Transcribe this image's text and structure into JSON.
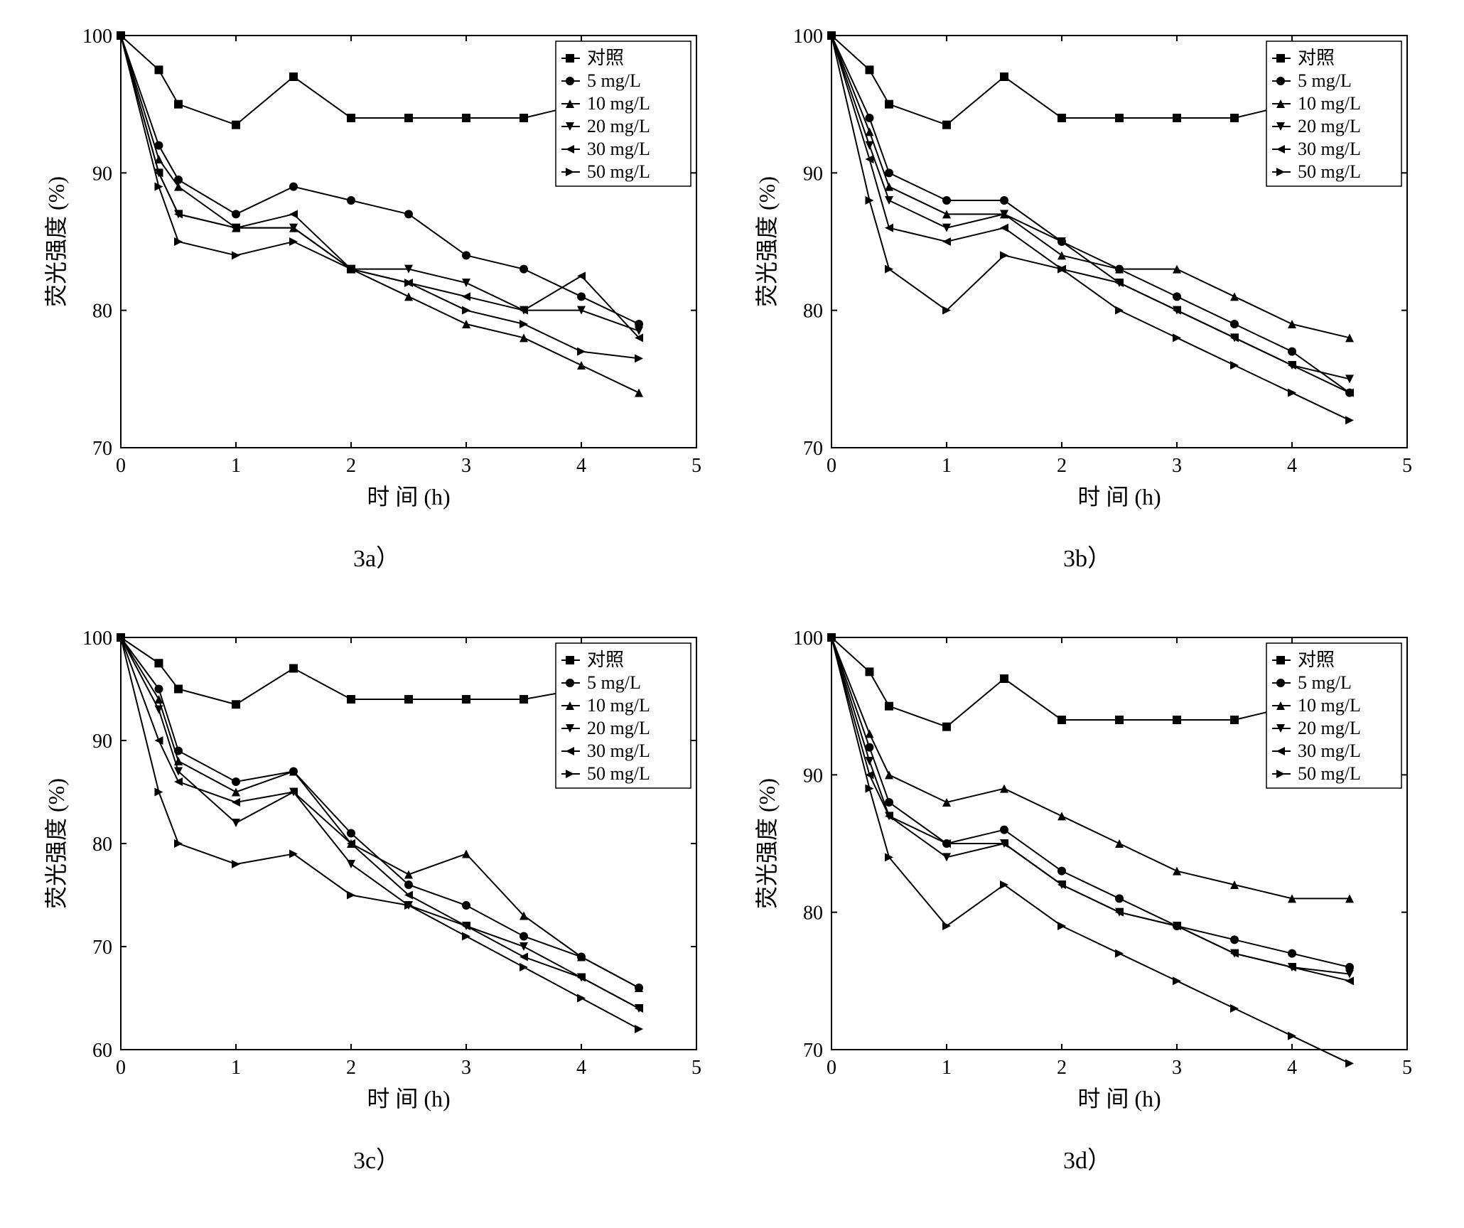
{
  "global": {
    "background_color": "#ffffff",
    "axis_color": "#000000",
    "text_color": "#000000",
    "line_color": "#000000",
    "marker_fill": "#000000",
    "font_family": "Times New Roman, SimSun, serif",
    "axis_label_fontsize": 32,
    "tick_fontsize": 28,
    "legend_fontsize": 26,
    "caption_fontsize": 34,
    "line_width": 2,
    "marker_size": 6,
    "legend_items": [
      {
        "label": "对照",
        "marker": "square"
      },
      {
        "label": "5 mg/L",
        "marker": "circle"
      },
      {
        "label": "10 mg/L",
        "marker": "triangle-up"
      },
      {
        "label": "20 mg/L",
        "marker": "triangle-down"
      },
      {
        "label": "30 mg/L",
        "marker": "triangle-left"
      },
      {
        "label": "50 mg/L",
        "marker": "triangle-right"
      }
    ],
    "xlabel": "时 间 (h)",
    "ylabel": "荧光强度 (%)",
    "xlim": [
      0,
      5
    ],
    "x_ticks": [
      0,
      1,
      2,
      3,
      4,
      5
    ],
    "x_values": [
      0,
      0.33,
      0.5,
      1,
      1.5,
      2,
      2.5,
      3,
      3.5,
      4,
      4.5
    ],
    "control_series_y": [
      100,
      97.5,
      95,
      93.5,
      97,
      94,
      94,
      94,
      94,
      95,
      98
    ]
  },
  "panels": [
    {
      "id": "a",
      "caption": "3a）",
      "ylim": [
        70,
        100
      ],
      "y_ticks": [
        70,
        80,
        90,
        100
      ],
      "series": [
        {
          "key": "control",
          "marker": "square",
          "y": [
            100,
            97.5,
            95,
            93.5,
            97,
            94,
            94,
            94,
            94,
            95,
            98
          ]
        },
        {
          "key": "5",
          "marker": "circle",
          "y": [
            100,
            92,
            89.5,
            87,
            89,
            88,
            87,
            84,
            83,
            81,
            79
          ]
        },
        {
          "key": "10",
          "marker": "triangle-up",
          "y": [
            100,
            91,
            89,
            86,
            86,
            83,
            81,
            79,
            78,
            76,
            74
          ]
        },
        {
          "key": "20",
          "marker": "triangle-down",
          "y": [
            100,
            90,
            87,
            86,
            86,
            83,
            83,
            82,
            80,
            80,
            78.5
          ]
        },
        {
          "key": "30",
          "marker": "triangle-left",
          "y": [
            100,
            90,
            87,
            86,
            87,
            83,
            82,
            81,
            80,
            82.5,
            78
          ]
        },
        {
          "key": "50",
          "marker": "triangle-right",
          "y": [
            100,
            89,
            85,
            84,
            85,
            83,
            82,
            80,
            79,
            77,
            76.5
          ]
        }
      ]
    },
    {
      "id": "b",
      "caption": "3b）",
      "ylim": [
        70,
        100
      ],
      "y_ticks": [
        70,
        80,
        90,
        100
      ],
      "series": [
        {
          "key": "control",
          "marker": "square",
          "y": [
            100,
            97.5,
            95,
            93.5,
            97,
            94,
            94,
            94,
            94,
            95,
            98
          ]
        },
        {
          "key": "5",
          "marker": "circle",
          "y": [
            100,
            94,
            90,
            88,
            88,
            85,
            83,
            81,
            79,
            77,
            74
          ]
        },
        {
          "key": "10",
          "marker": "triangle-up",
          "y": [
            100,
            93,
            89,
            87,
            87,
            84,
            83,
            83,
            81,
            79,
            78
          ]
        },
        {
          "key": "20",
          "marker": "triangle-down",
          "y": [
            100,
            92,
            88,
            86,
            87,
            85,
            82,
            80,
            78,
            76,
            75
          ]
        },
        {
          "key": "30",
          "marker": "triangle-left",
          "y": [
            100,
            91,
            86,
            85,
            86,
            83,
            82,
            80,
            78,
            76,
            74
          ]
        },
        {
          "key": "50",
          "marker": "triangle-right",
          "y": [
            100,
            88,
            83,
            80,
            84,
            83,
            80,
            78,
            76,
            74,
            72
          ]
        }
      ]
    },
    {
      "id": "c",
      "caption": "3c）",
      "ylim": [
        60,
        100
      ],
      "y_ticks": [
        60,
        70,
        80,
        90,
        100
      ],
      "series": [
        {
          "key": "control",
          "marker": "square",
          "y": [
            100,
            97.5,
            95,
            93.5,
            97,
            94,
            94,
            94,
            94,
            95,
            98
          ]
        },
        {
          "key": "5",
          "marker": "circle",
          "y": [
            100,
            95,
            89,
            86,
            87,
            81,
            76,
            74,
            71,
            69,
            66
          ]
        },
        {
          "key": "10",
          "marker": "triangle-up",
          "y": [
            100,
            94,
            88,
            85,
            87,
            80,
            77,
            79,
            73,
            69,
            66
          ]
        },
        {
          "key": "20",
          "marker": "triangle-down",
          "y": [
            100,
            93,
            87,
            82,
            85,
            78,
            74,
            72,
            70,
            67,
            64
          ]
        },
        {
          "key": "30",
          "marker": "triangle-left",
          "y": [
            100,
            90,
            86,
            84,
            85,
            80,
            75,
            72,
            69,
            67,
            64
          ]
        },
        {
          "key": "50",
          "marker": "triangle-right",
          "y": [
            100,
            85,
            80,
            78,
            79,
            75,
            74,
            71,
            68,
            65,
            62
          ]
        }
      ]
    },
    {
      "id": "d",
      "caption": "3d）",
      "ylim": [
        70,
        100
      ],
      "y_ticks": [
        70,
        80,
        90,
        100
      ],
      "series": [
        {
          "key": "control",
          "marker": "square",
          "y": [
            100,
            97.5,
            95,
            93.5,
            97,
            94,
            94,
            94,
            94,
            95,
            98
          ]
        },
        {
          "key": "5",
          "marker": "circle",
          "y": [
            100,
            92,
            88,
            85,
            86,
            83,
            81,
            79,
            78,
            77,
            76
          ]
        },
        {
          "key": "10",
          "marker": "triangle-up",
          "y": [
            100,
            93,
            90,
            88,
            89,
            87,
            85,
            83,
            82,
            81,
            81
          ]
        },
        {
          "key": "20",
          "marker": "triangle-down",
          "y": [
            100,
            91,
            87,
            84,
            85,
            82,
            80,
            79,
            77,
            76,
            75.5
          ]
        },
        {
          "key": "30",
          "marker": "triangle-left",
          "y": [
            100,
            90,
            87,
            85,
            85,
            82,
            80,
            79,
            77,
            76,
            75
          ]
        },
        {
          "key": "50",
          "marker": "triangle-right",
          "y": [
            100,
            89,
            84,
            79,
            82,
            79,
            77,
            75,
            73,
            71,
            69
          ]
        }
      ]
    }
  ]
}
